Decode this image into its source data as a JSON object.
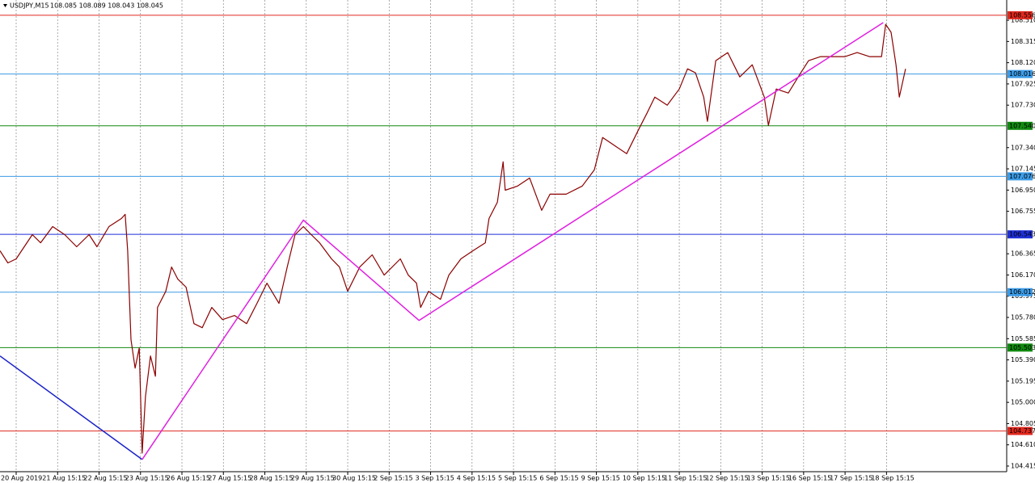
{
  "chart_data": {
    "type": "line",
    "title": "USDJPY,M15",
    "subtitle": "108.085 108.089 108.043 108.045",
    "grid": true,
    "xlim": [
      -0.39,
      23.9
    ],
    "ylim": [
      104.363,
      108.696
    ],
    "xticks": [
      {
        "value": 0,
        "label": "20 Aug 2019"
      },
      {
        "value": 1,
        "label": "21 Aug 15:15"
      },
      {
        "value": 2,
        "label": "22 Aug 15:15"
      },
      {
        "value": 3,
        "label": "23 Aug 15:15"
      },
      {
        "value": 4,
        "label": "26 Aug 15:15"
      },
      {
        "value": 5,
        "label": "27 Aug 15:15"
      },
      {
        "value": 6,
        "label": "28 Aug 15:15"
      },
      {
        "value": 7,
        "label": "29 Aug 15:15"
      },
      {
        "value": 8,
        "label": "30 Aug 15:15"
      },
      {
        "value": 9,
        "label": "2 Sep 15:15"
      },
      {
        "value": 10,
        "label": "3 Sep 15:15"
      },
      {
        "value": 11,
        "label": "4 Sep 15:15"
      },
      {
        "value": 12,
        "label": "5 Sep 15:15"
      },
      {
        "value": 13,
        "label": "6 Sep 15:15"
      },
      {
        "value": 14,
        "label": "9 Sep 15:15"
      },
      {
        "value": 15,
        "label": "10 Sep 15:15"
      },
      {
        "value": 16,
        "label": "11 Sep 15:15"
      },
      {
        "value": 17,
        "label": "12 Sep 15:15"
      },
      {
        "value": 18,
        "label": "13 Sep 15:15"
      },
      {
        "value": 19,
        "label": "16 Sep 15:15"
      },
      {
        "value": 20,
        "label": "17 Sep 15:15"
      },
      {
        "value": 21,
        "label": "18 Sep 15:15"
      }
    ],
    "yticks": [
      {
        "value": 108.51,
        "label": "108.510"
      },
      108.315,
      {
        "value": 108.12,
        "label": "108.120"
      },
      107.925,
      {
        "value": 107.73,
        "label": "107.730"
      },
      {
        "value": 107.34,
        "label": "107.340"
      },
      107.145,
      {
        "value": 106.95,
        "label": "106.950"
      },
      106.755,
      106.365,
      {
        "value": 106.17,
        "label": "106.170"
      },
      105.975,
      {
        "value": 105.78,
        "label": "105.780"
      },
      105.585,
      {
        "value": 105.39,
        "label": "105.390"
      },
      105.195,
      {
        "value": 105.0,
        "label": "105.000"
      },
      104.805,
      {
        "value": 104.61,
        "label": "104.610"
      },
      104.415
    ],
    "x": [
      -0.39,
      -0.2,
      0,
      0.39,
      0.59,
      0.88,
      1.17,
      1.46,
      1.76,
      1.95,
      2.24,
      2.54,
      2.63,
      2.69,
      2.77,
      2.87,
      2.97,
      3.04,
      3.12,
      3.24,
      3.36,
      3.41,
      3.61,
      3.75,
      3.9,
      4.1,
      4.29,
      4.49,
      4.72,
      4.98,
      5.27,
      5.56,
      5.81,
      6.05,
      6.34,
      6.54,
      6.73,
      6.93,
      7.12,
      7.32,
      7.61,
      7.8,
      8,
      8.29,
      8.59,
      8.88,
      9.27,
      9.46,
      9.66,
      9.76,
      9.95,
      10.24,
      10.44,
      10.73,
      11.02,
      11.32,
      11.41,
      11.61,
      11.75,
      11.8,
      12.1,
      12.39,
      12.68,
      12.88,
      13.27,
      13.66,
      13.95,
      14.15,
      14.44,
      14.73,
      15.02,
      15.22,
      15.41,
      15.71,
      16,
      16.2,
      16.39,
      16.59,
      16.68,
      16.88,
      17.17,
      17.46,
      17.76,
      18.05,
      18.15,
      18.34,
      18.63,
      18.93,
      19.12,
      19.41,
      19.71,
      20,
      20.29,
      20.59,
      20.88,
      20.98,
      21.11,
      21.23,
      21.31,
      21.46
    ],
    "series": [
      {
        "color": "#8b0000",
        "values": [
          106.392,
          106.281,
          106.318,
          106.541,
          106.466,
          106.615,
          106.541,
          106.429,
          106.541,
          106.429,
          106.615,
          106.689,
          106.727,
          106.392,
          105.575,
          105.314,
          105.5,
          104.534,
          105.054,
          105.426,
          105.24,
          105.872,
          106.02,
          106.243,
          106.132,
          106.058,
          105.723,
          105.686,
          105.872,
          105.76,
          105.798,
          105.723,
          105.909,
          106.095,
          105.909,
          106.243,
          106.541,
          106.615,
          106.541,
          106.466,
          106.318,
          106.243,
          106.02,
          106.243,
          106.355,
          106.169,
          106.318,
          106.169,
          106.095,
          105.872,
          106.02,
          105.946,
          106.169,
          106.318,
          106.392,
          106.466,
          106.689,
          106.838,
          107.21,
          106.949,
          106.987,
          107.061,
          106.764,
          106.912,
          106.912,
          106.987,
          107.135,
          107.433,
          107.358,
          107.284,
          107.507,
          107.656,
          107.804,
          107.73,
          107.878,
          108.064,
          108.027,
          107.804,
          107.581,
          108.139,
          108.213,
          107.99,
          108.101,
          107.804,
          107.544,
          107.878,
          107.841,
          108.027,
          108.139,
          108.176,
          108.176,
          108.176,
          108.213,
          108.176,
          108.176,
          108.473,
          108.399,
          108.101,
          107.804,
          108.064
        ]
      }
    ],
    "levels": [
      {
        "value": 108.556,
        "label": "108.556",
        "color": "#e0281e"
      },
      {
        "value": 108.016,
        "label": "108.016",
        "color": "#3c9be6"
      },
      {
        "value": 107.54,
        "label": "107.540",
        "color": "#118a11"
      },
      {
        "value": 107.076,
        "label": "107.076",
        "color": "#3c9be6"
      },
      {
        "value": 106.543,
        "label": "106.543",
        "color": "#1f2fd6"
      },
      {
        "value": 106.012,
        "label": "106.012",
        "color": "#3c9be6"
      },
      {
        "value": 105.503,
        "label": "105.503",
        "color": "#118a11"
      },
      {
        "value": 104.737,
        "label": "104.737",
        "color": "#e0281e"
      }
    ],
    "trendlines": [
      {
        "color": "#1a22c8",
        "x": [
          -0.39,
          3.04
        ],
        "values": [
          105.426,
          104.475
        ]
      },
      {
        "color": "#e020e0",
        "x": [
          3.04,
          6.93,
          9.72,
          20.92
        ],
        "values": [
          104.475,
          106.674,
          105.753,
          108.488
        ]
      }
    ]
  }
}
